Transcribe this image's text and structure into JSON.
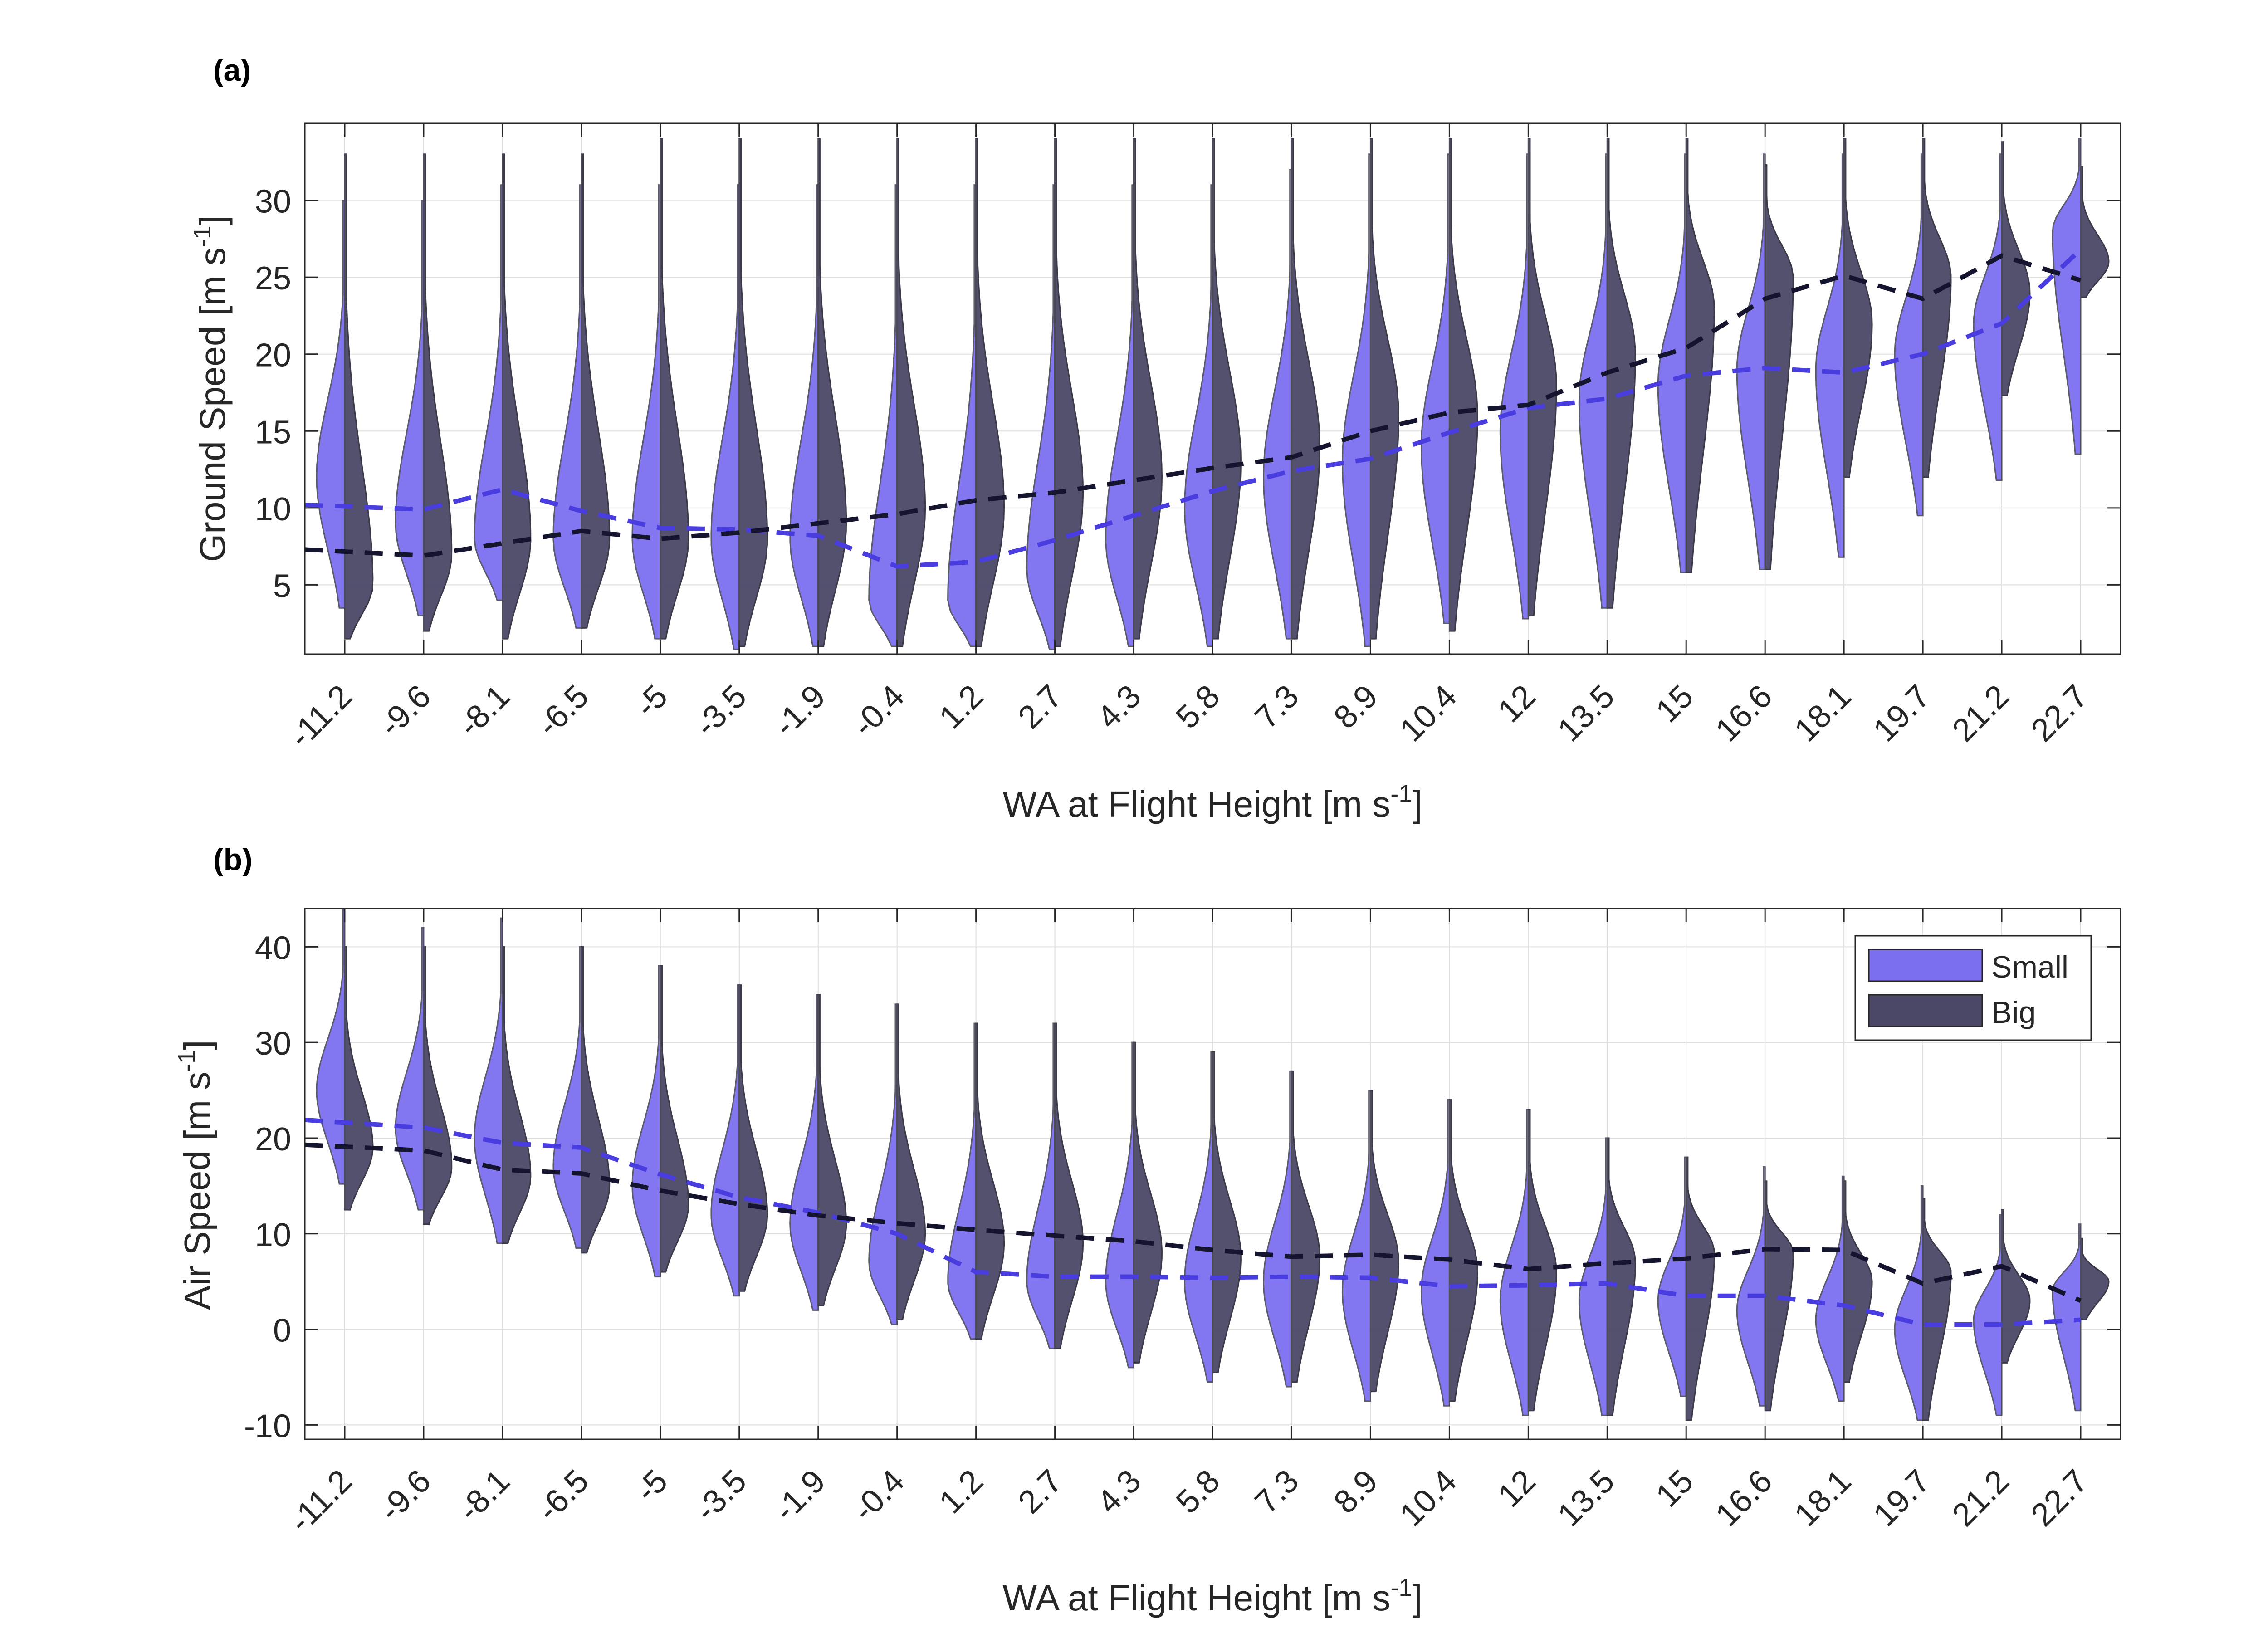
{
  "colors": {
    "small": "#7b6ff0",
    "small_edge": "#5a5a6a",
    "big": "#4a4866",
    "big_edge": "#3a3a48",
    "small_line": "#4a3de0",
    "big_line": "#14142e",
    "grid": "#dedede",
    "axis": "#262626"
  },
  "chart_data": [
    {
      "type": "violin",
      "panel": "(a)",
      "xlabel": "WA at Flight Height [m s",
      "xlabel_sup": "-1",
      "xlabel_end": "]",
      "ylabel": "Ground Speed [m s",
      "ylabel_sup": "-1",
      "ylabel_end": "]",
      "categories": [
        "-11.2",
        "-9.6",
        "-8.1",
        "-6.5",
        "-5",
        "-3.5",
        "-1.9",
        "-0.4",
        "1.2",
        "2.7",
        "4.3",
        "5.8",
        "7.3",
        "8.9",
        "10.4",
        "12",
        "13.5",
        "15",
        "16.6",
        "18.1",
        "19.7",
        "21.2",
        "22.7"
      ],
      "ylim": [
        0.5,
        35
      ],
      "yticks": [
        5,
        10,
        15,
        20,
        25,
        30
      ],
      "grid": true,
      "series": [
        {
          "name": "Small",
          "side": "left",
          "min": [
            3.5,
            3,
            4,
            2.2,
            1.5,
            0.8,
            1,
            1,
            1,
            0.8,
            1,
            1,
            1.5,
            1,
            2.5,
            2.8,
            3.5,
            5.8,
            6,
            6.8,
            9.5,
            11.8,
            13.5
          ],
          "max": [
            30,
            30,
            31,
            31,
            31,
            31,
            31,
            31,
            31,
            31,
            31,
            31,
            32,
            33,
            33,
            33,
            33,
            33,
            33,
            33,
            33,
            33,
            34
          ],
          "mode": [
            12,
            9,
            8,
            8,
            8,
            8,
            8,
            4,
            4,
            6,
            8,
            10,
            12,
            13,
            14,
            15,
            17,
            18,
            19,
            19,
            20,
            22,
            28
          ],
          "median_line": [
            10.2,
            9.9,
            11.2,
            9.8,
            8.7,
            8.6,
            8.2,
            6.2,
            6.5,
            7.9,
            9.5,
            11.1,
            12.4,
            13.2,
            14.9,
            16.5,
            17.1,
            18.6,
            19.1,
            18.8,
            20.0,
            22.0,
            26.8
          ]
        },
        {
          "name": "Big",
          "side": "right",
          "min": [
            1.5,
            2,
            1.5,
            2.2,
            1.5,
            1,
            1,
            1,
            1,
            1,
            1.5,
            1.5,
            1.5,
            1.5,
            2,
            3,
            3.5,
            5.8,
            6,
            12,
            12,
            17.3,
            23.7
          ],
          "max": [
            33,
            33,
            33,
            33,
            34,
            34,
            34,
            34,
            34,
            34,
            34,
            34,
            34,
            34,
            34,
            34,
            34,
            34,
            32.3,
            34,
            34,
            33.8,
            32.2
          ],
          "mode": [
            5,
            7,
            8,
            8,
            8,
            8,
            9,
            10,
            10,
            11,
            12,
            13,
            14,
            16,
            16,
            18,
            20,
            23,
            25,
            22,
            25,
            24,
            26
          ],
          "median_line": [
            7.3,
            6.9,
            7.7,
            8.5,
            8.0,
            8.4,
            9.0,
            9.6,
            10.5,
            11.0,
            11.8,
            12.6,
            13.3,
            15.0,
            16.2,
            16.7,
            18.8,
            20.4,
            23.6,
            25.1,
            23.6,
            26.4,
            24.8
          ]
        }
      ]
    },
    {
      "type": "violin",
      "panel": "(b)",
      "xlabel": "WA at Flight Height [m s",
      "xlabel_sup": "-1",
      "xlabel_end": "]",
      "ylabel": "Air Speed [m s",
      "ylabel_sup": "-1",
      "ylabel_end": "]",
      "categories": [
        "-11.2",
        "-9.6",
        "-8.1",
        "-6.5",
        "-5",
        "-3.5",
        "-1.9",
        "-0.4",
        "1.2",
        "2.7",
        "4.3",
        "5.8",
        "7.3",
        "8.9",
        "10.4",
        "12",
        "13.5",
        "15",
        "16.6",
        "18.1",
        "19.7",
        "21.2",
        "22.7"
      ],
      "ylim": [
        -11.5,
        44
      ],
      "yticks": [
        -10,
        0,
        10,
        20,
        30,
        40
      ],
      "grid": true,
      "legend": {
        "placement": "top-right",
        "entries": [
          "Small",
          "Big"
        ]
      },
      "series": [
        {
          "name": "Small",
          "side": "left",
          "min": [
            15.2,
            12.5,
            9,
            8.5,
            5.5,
            3.5,
            2,
            0.5,
            -1,
            -2,
            -4,
            -5.5,
            -6,
            -7.5,
            -8,
            -9,
            -9,
            -7,
            -8,
            -7.5,
            -9.5,
            -9,
            -8.5
          ],
          "max": [
            44,
            42,
            43,
            40,
            38,
            36,
            35,
            34,
            32,
            32,
            30,
            29,
            27,
            25,
            24,
            23,
            20,
            18,
            17,
            16,
            15,
            12,
            11
          ],
          "mode": [
            25,
            21,
            20,
            17,
            15,
            12,
            11,
            7,
            5,
            5,
            5,
            5,
            5,
            4,
            4,
            3,
            3,
            3,
            2,
            1,
            0,
            1,
            4
          ],
          "median_line": [
            21.9,
            21.1,
            19.5,
            19.0,
            16.2,
            13.8,
            12.2,
            10.0,
            6.0,
            5.5,
            5.5,
            5.4,
            5.5,
            5.4,
            4.5,
            4.6,
            4.8,
            3.5,
            3.5,
            2.5,
            0.5,
            0.5,
            1.0
          ]
        },
        {
          "name": "Big",
          "side": "right",
          "min": [
            12.5,
            11,
            9,
            8,
            6,
            4,
            2.5,
            1,
            -1,
            -2,
            -3.5,
            -4.5,
            -5.5,
            -6.5,
            -7.5,
            -8.5,
            -9,
            -9.5,
            -8.5,
            -5.5,
            -9.5,
            -3.5,
            1
          ],
          "max": [
            40,
            40,
            40,
            40,
            38,
            36,
            35,
            34,
            32,
            32,
            30,
            29,
            27,
            25,
            24,
            23,
            20,
            18,
            15.5,
            15.5,
            13.7,
            12.5,
            9.5
          ],
          "mode": [
            19,
            17,
            16,
            15,
            13,
            12,
            11,
            10,
            9,
            9,
            8,
            7.5,
            7.5,
            7,
            6,
            6,
            7,
            8,
            8,
            5,
            6,
            3,
            5
          ],
          "median_line": [
            19.3,
            18.7,
            16.7,
            16.3,
            14.5,
            13.1,
            11.9,
            11.1,
            10.4,
            9.8,
            9.2,
            8.3,
            7.6,
            7.8,
            7.3,
            6.3,
            6.9,
            7.4,
            8.4,
            8.3,
            4.8,
            6.6,
            3.0
          ]
        }
      ]
    }
  ]
}
